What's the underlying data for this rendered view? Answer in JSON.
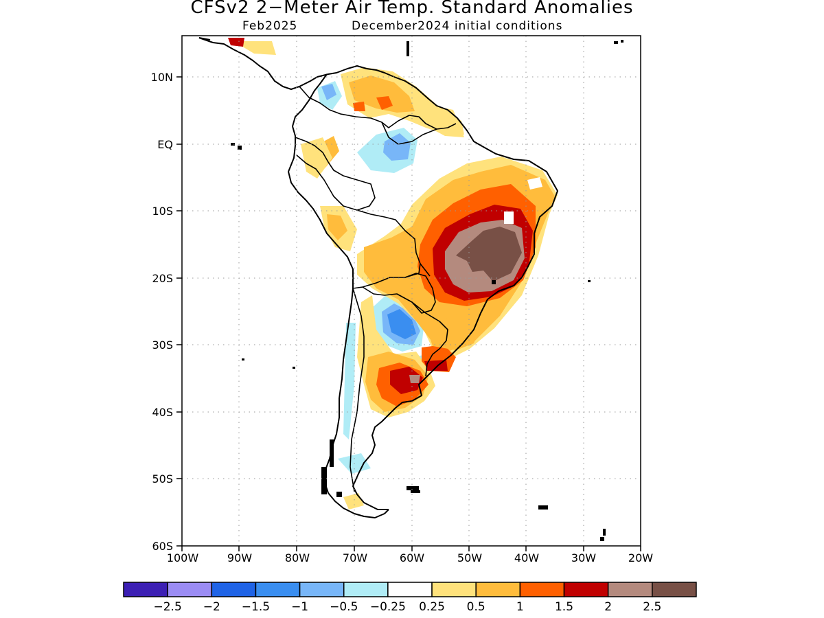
{
  "title": "CFSv2 2−Meter Air Temp. Standard Anomalies",
  "subtitle_left": "Feb2025",
  "subtitle_right": "December2024 initial conditions",
  "lat_labels": [
    "10N",
    "EQ",
    "10S",
    "20S",
    "30S",
    "40S",
    "50S",
    "60S"
  ],
  "lon_labels": [
    "100W",
    "90W",
    "80W",
    "70W",
    "60W",
    "50W",
    "40W",
    "30W",
    "20W"
  ],
  "colorbar": {
    "colors": [
      "#3c1fb4",
      "#9b8cf4",
      "#1f63e6",
      "#3a8ef0",
      "#78b6f8",
      "#b0ecf6",
      "#ffffff",
      "#ffe27c",
      "#ffbc3c",
      "#ff6000",
      "#c00000",
      "#b48a7e",
      "#785046"
    ],
    "labels": [
      "−2.5",
      "−2",
      "−1.5",
      "−1",
      "−0.5",
      "−0.25",
      "0.25",
      "0.5",
      "1",
      "1.5",
      "2",
      "2.5"
    ]
  }
}
